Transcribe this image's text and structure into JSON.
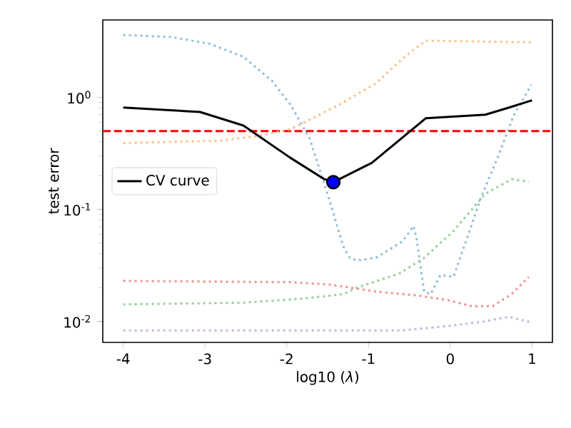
{
  "chart_data": {
    "type": "line",
    "xlabel": "log10 (*λ*)",
    "ylabel": "test error",
    "log": "y",
    "xlim": [
      -4.25,
      1.25
    ],
    "ylim": [
      0.0065,
      4.9
    ],
    "xticks": [
      -4,
      -3,
      -2,
      -1,
      0,
      1
    ],
    "yticks": [
      {
        "value": 0.01,
        "label": "10$^{-2}$"
      },
      {
        "value": 0.1,
        "label": "10$^{-1}$"
      },
      {
        "value": 1,
        "label": "10$^{0}$"
      }
    ],
    "legend": "center left",
    "ref_lines": [
      {
        "axis": "y",
        "value": 0.5,
        "color": "#ff0000",
        "line_style": "dashed"
      }
    ],
    "series": [
      {
        "line_style": "dotted",
        "color": "#8fbbd9",
        "x": [
          -4,
          -3.41,
          -2.94,
          -2.53,
          -2.18,
          -1.95,
          -1.72,
          -1.49,
          -1.31,
          -1.23,
          -1.14,
          -0.91,
          -0.58,
          -0.45,
          -0.41,
          -0.32,
          -0.24,
          -0.12,
          0.04,
          0.2,
          0.38,
          0.58,
          0.78,
          0.99
        ],
        "values": [
          3.6,
          3.45,
          3.0,
          2.3,
          1.4,
          0.85,
          0.43,
          0.13,
          0.047,
          0.037,
          0.035,
          0.037,
          0.052,
          0.071,
          0.054,
          0.0185,
          0.0175,
          0.026,
          0.025,
          0.054,
          0.13,
          0.29,
          0.7,
          1.29
        ]
      },
      {
        "line_style": "dotted",
        "color": "#ffbf86",
        "x": [
          -4,
          -2.83,
          -2.36,
          -1.95,
          -1.37,
          -0.91,
          -0.56,
          -0.3,
          0.99
        ],
        "values": [
          0.39,
          0.41,
          0.45,
          0.52,
          0.85,
          1.33,
          2.3,
          3.2,
          3.1
        ]
      },
      {
        "line_style": "dotted",
        "color": "#95cf95",
        "x": [
          -4,
          -2.53,
          -1.84,
          -1.31,
          -1.14,
          -0.61,
          -0.32,
          0.03,
          0.43,
          0.75,
          0.96
        ],
        "values": [
          0.0142,
          0.0147,
          0.0159,
          0.0175,
          0.02,
          0.027,
          0.037,
          0.063,
          0.138,
          0.186,
          0.177
        ]
      },
      {
        "line_style": "dotted",
        "color": "#ea9393",
        "x": [
          -4,
          -1.95,
          -1.49,
          -0.91,
          -0.38,
          -0.03,
          0.26,
          0.52,
          0.75,
          0.96
        ],
        "values": [
          0.023,
          0.0224,
          0.0214,
          0.0185,
          0.017,
          0.0155,
          0.0137,
          0.0137,
          0.0175,
          0.025
        ]
      },
      {
        "line_style": "dotted",
        "color": "#c9b3de",
        "x": [
          -4,
          -0.61,
          -0.03,
          0.38,
          0.72,
          0.99
        ],
        "values": [
          0.0083,
          0.0083,
          0.0091,
          0.0099,
          0.011,
          0.0098
        ]
      },
      {
        "name": "CV curve",
        "line_style": "solid",
        "color": "#000000",
        "x": [
          -4,
          -3.06,
          -2.53,
          -1.96,
          -1.54,
          -1.43,
          -0.96,
          -0.3,
          0.43,
          0.72,
          1.0
        ],
        "values": [
          0.81,
          0.74,
          0.56,
          0.29,
          0.186,
          0.175,
          0.26,
          0.65,
          0.7,
          0.81,
          0.94
        ]
      },
      {
        "type": "scatter",
        "marker": "circle",
        "color": "#0000ff",
        "x": [
          -1.43
        ],
        "values": [
          0.175
        ]
      }
    ]
  }
}
